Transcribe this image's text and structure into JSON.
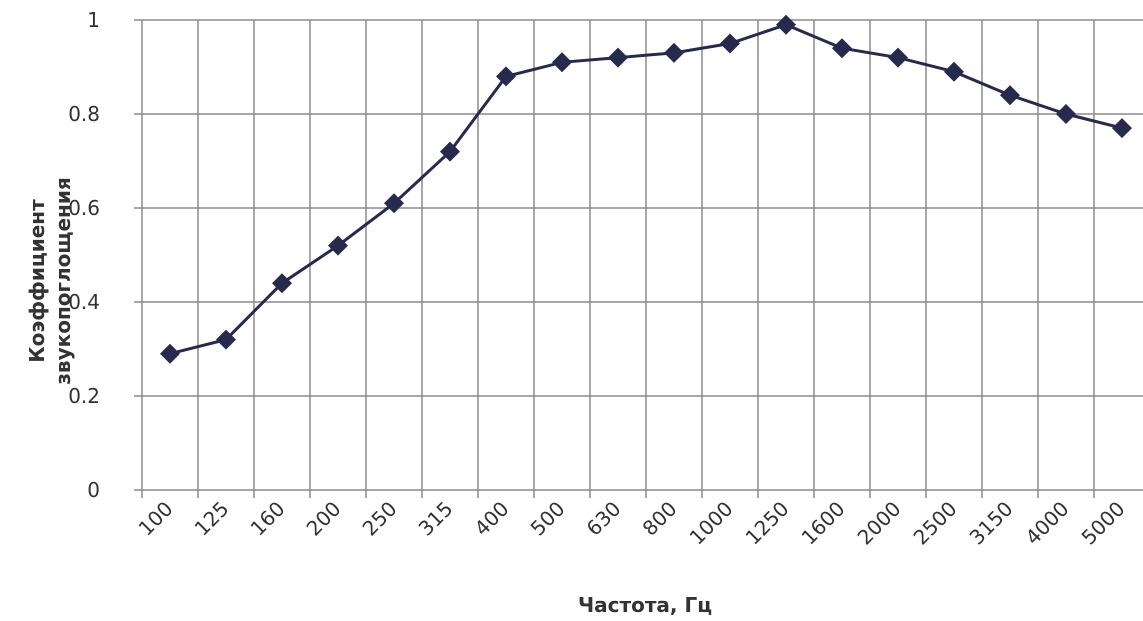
{
  "chart_data": {
    "type": "line",
    "xlabel": "Частота, Гц",
    "ylabel": "Коэффициент звукопоглощения",
    "categories": [
      "100",
      "125",
      "160",
      "200",
      "250",
      "315",
      "400",
      "500",
      "630",
      "800",
      "1000",
      "1250",
      "1600",
      "2000",
      "2500",
      "3150",
      "4000",
      "5000"
    ],
    "series": [
      {
        "name": null,
        "color": "#262a4d",
        "values": [
          0.29,
          0.32,
          0.44,
          0.52,
          0.61,
          0.72,
          0.88,
          0.91,
          0.92,
          0.93,
          0.95,
          0.99,
          0.94,
          0.92,
          0.89,
          0.84,
          0.8,
          0.77
        ]
      }
    ],
    "ylim": [
      0,
      1
    ],
    "yticks": [
      0,
      0.2,
      0.4,
      0.6,
      0.8,
      1
    ],
    "grid": true
  }
}
